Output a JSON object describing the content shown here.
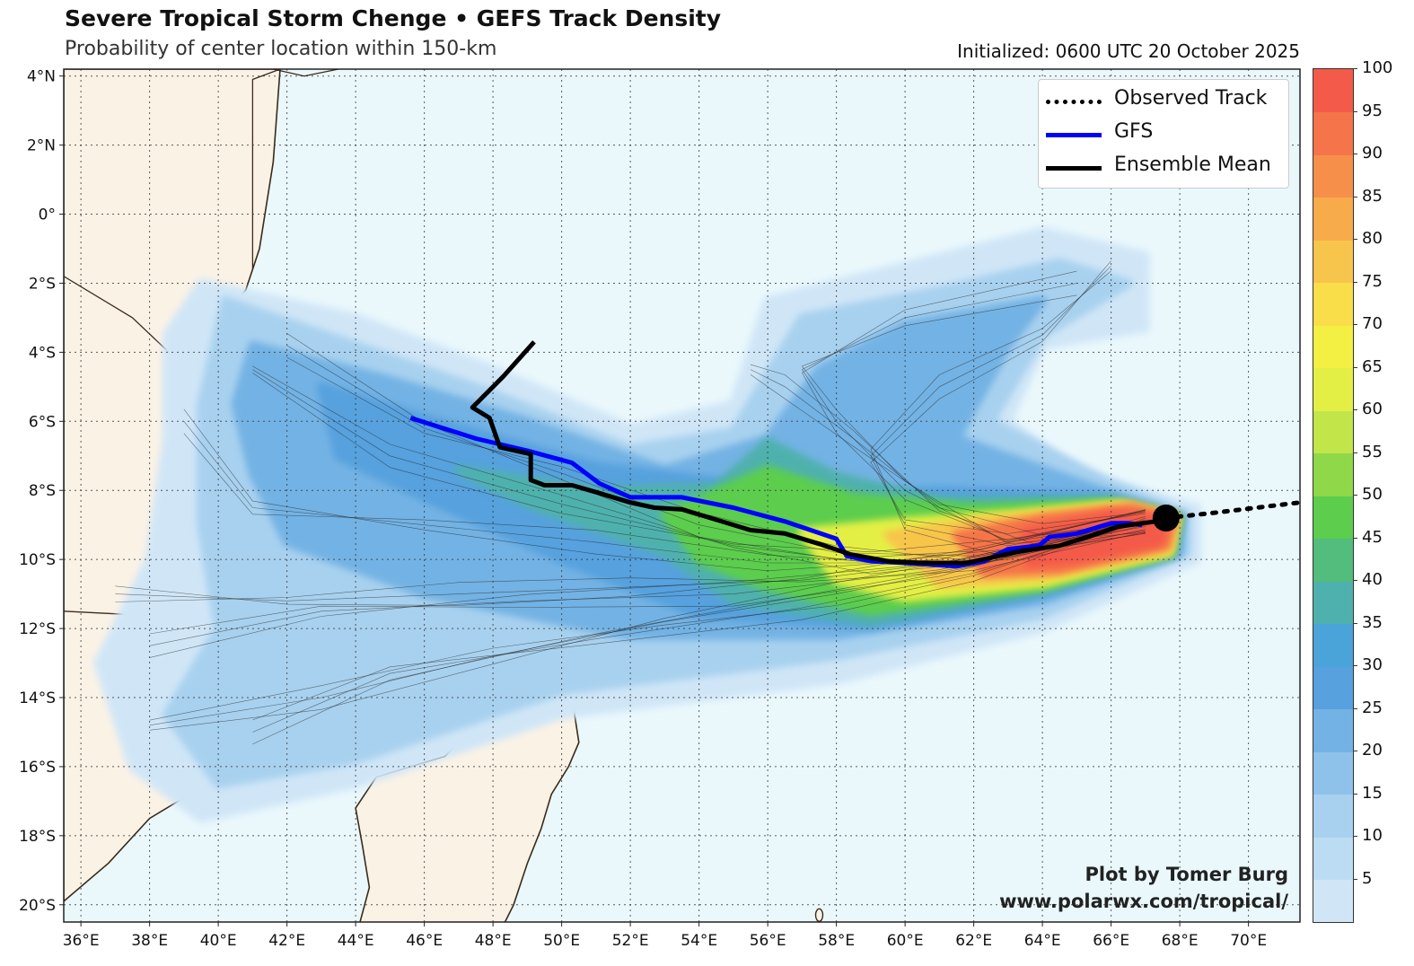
{
  "header": {
    "title": "Severe Tropical Storm Chenge • GEFS Track Density",
    "subtitle": "Probability of center location within 150-km",
    "initialized": "Initialized: 0600 UTC 20 October 2025"
  },
  "map": {
    "lon_range": [
      35.5,
      71.5
    ],
    "lat_range": [
      -20.5,
      4.2
    ],
    "lat_labels": [
      "4°N",
      "2°N",
      "0°",
      "2°S",
      "4°S",
      "6°S",
      "8°S",
      "10°S",
      "12°S",
      "14°S",
      "16°S",
      "18°S",
      "20°S"
    ],
    "lon_labels": [
      "36°E",
      "38°E",
      "40°E",
      "42°E",
      "44°E",
      "46°E",
      "48°E",
      "50°E",
      "52°E",
      "54°E",
      "56°E",
      "58°E",
      "60°E",
      "62°E",
      "64°E",
      "66°E",
      "68°E",
      "70°E"
    ],
    "storm_position": {
      "lon": 67.6,
      "lat": -8.8
    },
    "observed_track": [
      [
        67.6,
        -8.8
      ],
      [
        69.0,
        -8.65
      ],
      [
        71.5,
        -8.35
      ]
    ],
    "gfs_track": [
      [
        45.6,
        -5.9
      ],
      [
        47.5,
        -6.5
      ],
      [
        49.0,
        -6.85
      ],
      [
        50.3,
        -7.2
      ],
      [
        51.1,
        -7.8
      ],
      [
        52.0,
        -8.2
      ],
      [
        53.5,
        -8.2
      ],
      [
        55.0,
        -8.5
      ],
      [
        56.5,
        -8.9
      ],
      [
        58.0,
        -9.4
      ],
      [
        58.3,
        -9.9
      ],
      [
        59.0,
        -10.05
      ],
      [
        60.0,
        -10.1
      ],
      [
        61.5,
        -10.2
      ],
      [
        62.3,
        -10.05
      ],
      [
        63.0,
        -9.7
      ],
      [
        63.9,
        -9.6
      ],
      [
        64.2,
        -9.35
      ],
      [
        65.0,
        -9.25
      ],
      [
        66.0,
        -8.95
      ],
      [
        66.5,
        -8.95
      ],
      [
        66.9,
        -9.0
      ]
    ],
    "ensemble_mean_track": [
      [
        49.2,
        -3.7
      ],
      [
        48.3,
        -4.7
      ],
      [
        47.4,
        -5.6
      ],
      [
        47.9,
        -5.9
      ],
      [
        48.2,
        -6.75
      ],
      [
        49.1,
        -6.95
      ],
      [
        49.1,
        -7.7
      ],
      [
        49.5,
        -7.85
      ],
      [
        50.3,
        -7.85
      ],
      [
        51.0,
        -8.05
      ],
      [
        52.0,
        -8.35
      ],
      [
        52.7,
        -8.5
      ],
      [
        53.5,
        -8.55
      ],
      [
        54.5,
        -8.85
      ],
      [
        55.5,
        -9.15
      ],
      [
        56.5,
        -9.25
      ],
      [
        57.5,
        -9.55
      ],
      [
        58.4,
        -9.85
      ],
      [
        59.5,
        -10.05
      ],
      [
        60.5,
        -10.1
      ],
      [
        61.8,
        -10.1
      ],
      [
        62.5,
        -9.95
      ],
      [
        63.4,
        -9.75
      ],
      [
        64.5,
        -9.6
      ],
      [
        65.3,
        -9.35
      ],
      [
        66.2,
        -9.05
      ],
      [
        67.3,
        -8.9
      ]
    ],
    "colors": {
      "ocean": "#eaf8fc",
      "land": "#fbf2e6",
      "coast": "#3a2a1a",
      "gfs": "#0000ff",
      "mean": "#000000"
    }
  },
  "legend": {
    "items": [
      {
        "label": "Observed Track",
        "style": "dotted",
        "color": "#000000"
      },
      {
        "label": "GFS",
        "style": "solid",
        "color": "#0000ff"
      },
      {
        "label": "Ensemble Mean",
        "style": "solid",
        "color": "#000000"
      }
    ]
  },
  "credit": {
    "line1": "Plot by Tomer Burg",
    "line2": "www.polarwx.com/tropical/"
  },
  "colorbar": {
    "labels": [
      "100",
      "95",
      "90",
      "85",
      "80",
      "75",
      "70",
      "65",
      "60",
      "55",
      "50",
      "45",
      "40",
      "35",
      "30",
      "25",
      "20",
      "15",
      "10",
      "5"
    ],
    "colors": [
      "#d0e6f7",
      "#bcdcf3",
      "#a8d1ef",
      "#8fc2ea",
      "#73b2e4",
      "#56a1de",
      "#4aa3d9",
      "#4fb1ad",
      "#52bd7d",
      "#5ccd4d",
      "#8fd84a",
      "#c2e54a",
      "#e4ef45",
      "#f4f043",
      "#f9de4a",
      "#f8c54c",
      "#f7ab4b",
      "#f68f4a",
      "#f5744a",
      "#f45a49"
    ]
  },
  "chart_data": {
    "type": "heatmap",
    "title": "Severe Tropical Storm Chenge • GEFS Track Density",
    "subtitle": "Probability of center location within 150-km",
    "colorbar_range": [
      0,
      100
    ],
    "colorbar_step": 5,
    "peak_probability_region": {
      "lon_range": [
        62,
        67.5
      ],
      "lat_range": [
        -10.5,
        -8.5
      ],
      "value": 95
    }
  }
}
